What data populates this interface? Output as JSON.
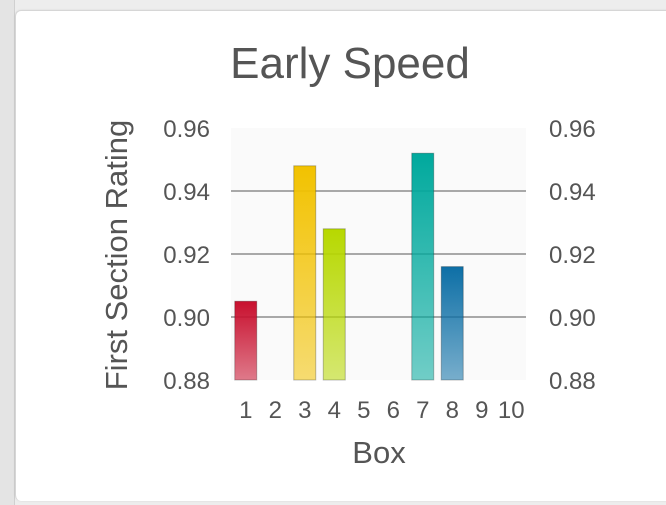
{
  "chart_data": {
    "type": "bar",
    "title": "Early Speed",
    "xlabel": "Box",
    "ylabel": "First Section Rating",
    "categories": [
      "1",
      "2",
      "3",
      "4",
      "5",
      "6",
      "7",
      "8",
      "9",
      "10"
    ],
    "values": [
      0.905,
      null,
      0.948,
      0.928,
      null,
      null,
      0.952,
      0.916,
      null,
      null
    ],
    "ylim": [
      0.88,
      0.96
    ],
    "yticks": [
      "0.96",
      "0.94",
      "0.92",
      "0.90",
      "0.88"
    ],
    "ytick_values": [
      0.96,
      0.94,
      0.92,
      0.9,
      0.88
    ],
    "secondary_y_axis": true,
    "grid": true,
    "colors": [
      "#c8102e",
      null,
      "#f2c200",
      "#b7d800",
      null,
      null,
      "#00a99d",
      "#0d6fa6",
      null,
      null
    ]
  }
}
